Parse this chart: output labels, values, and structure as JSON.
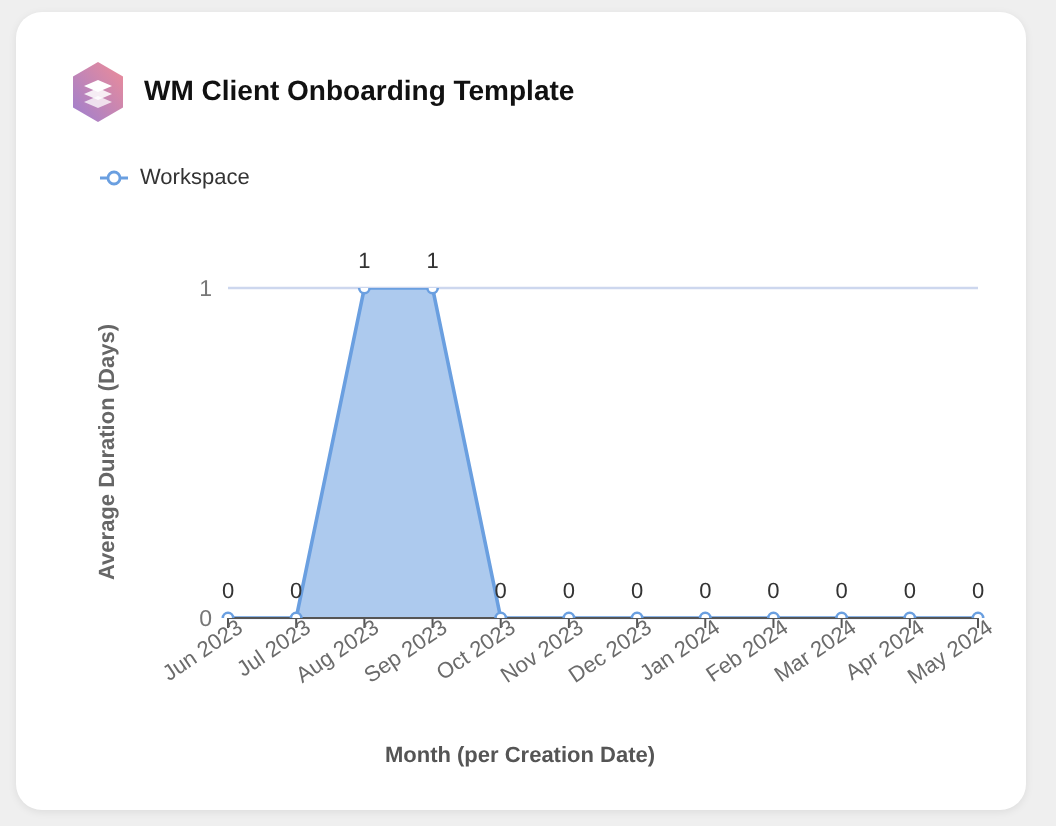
{
  "chart_data": {
    "type": "area",
    "title": "WM Client Onboarding Template",
    "xlabel": "Month (per Creation Date)",
    "ylabel": "Average Duration (Days)",
    "categories": [
      "Jun 2023",
      "Jul 2023",
      "Aug 2023",
      "Sep 2023",
      "Oct 2023",
      "Nov 2023",
      "Dec 2023",
      "Jan 2024",
      "Feb 2024",
      "Mar 2024",
      "Apr 2024",
      "May 2024"
    ],
    "series": [
      {
        "name": "Workspace",
        "color": "#6a9fe0",
        "values": [
          0,
          0,
          1,
          1,
          0,
          0,
          0,
          0,
          0,
          0,
          0,
          0
        ]
      }
    ],
    "ylim": [
      0,
      1
    ],
    "yticks": [
      0,
      1
    ],
    "grid": "y",
    "legend": "top left",
    "marker": "circle",
    "line_style": "solid",
    "data_labels": true
  }
}
